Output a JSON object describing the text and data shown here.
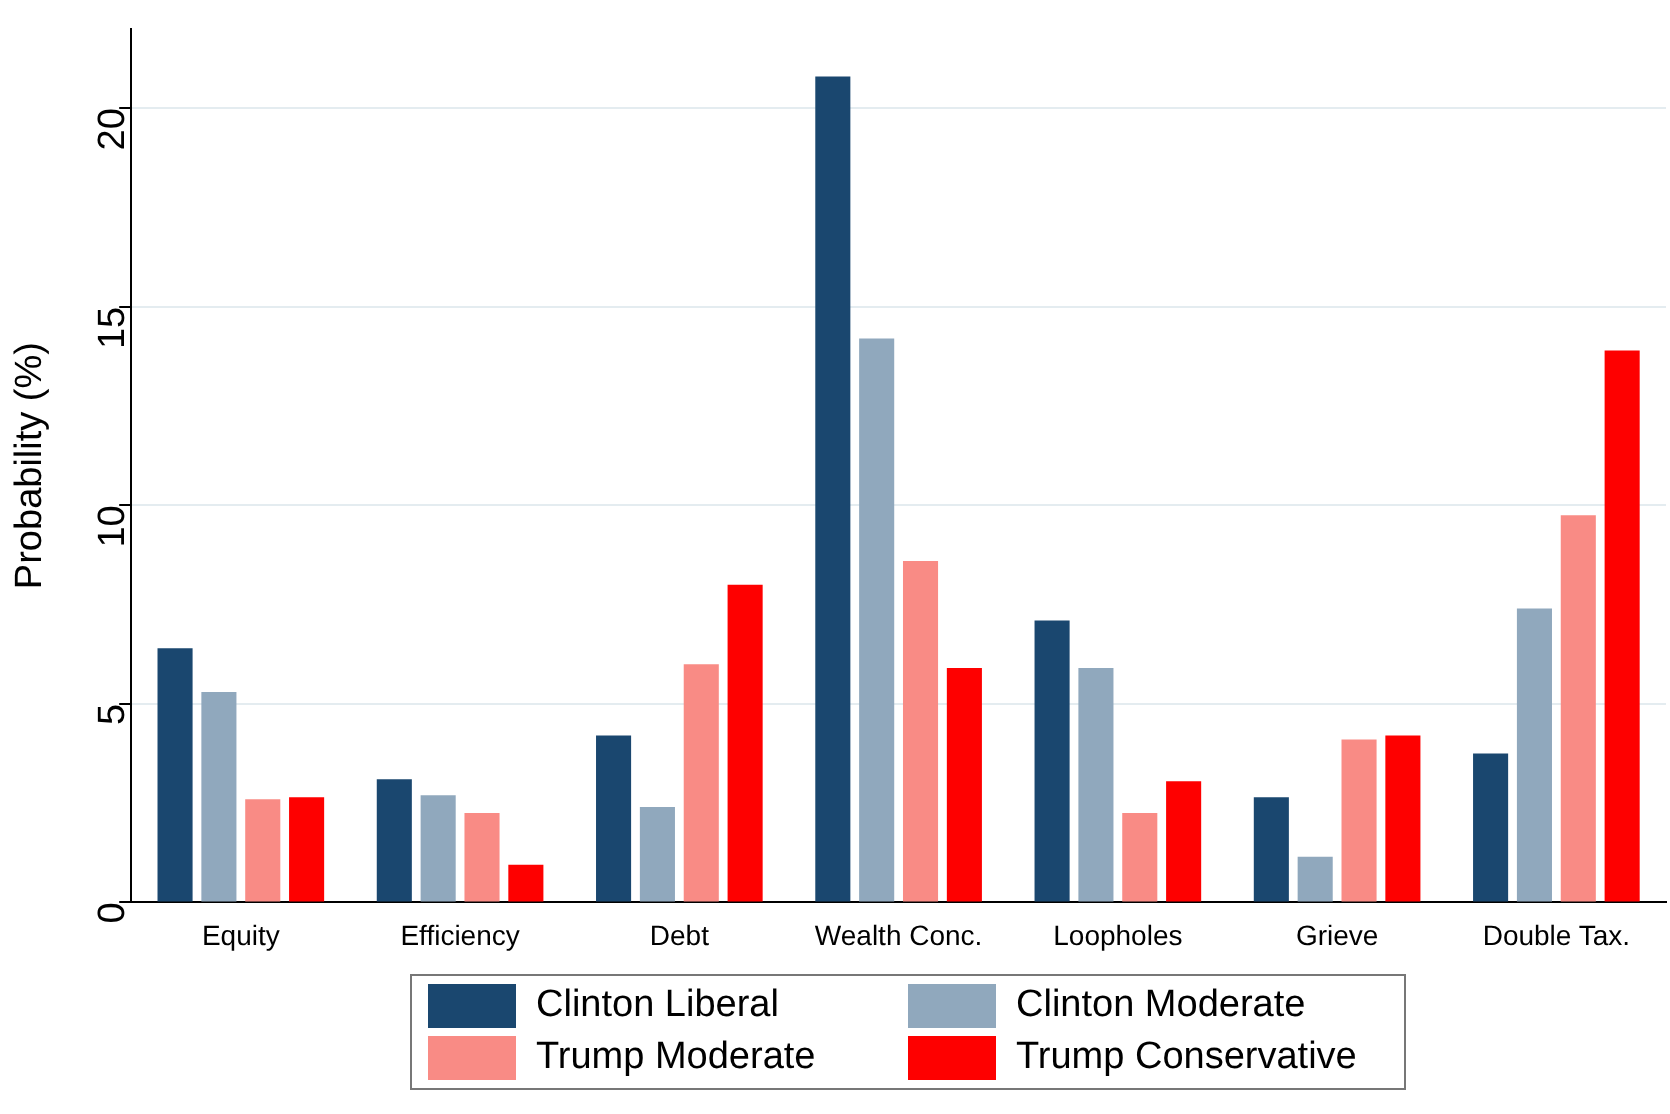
{
  "chart_data": {
    "type": "bar",
    "ylabel": "Probability (%)",
    "categories": [
      "Equity",
      "Efficiency",
      "Debt",
      "Wealth Conc.",
      "Loopholes",
      "Grieve",
      "Double Tax."
    ],
    "series": [
      {
        "name": "Clinton Liberal",
        "color": "#1a476f",
        "values": [
          6.4,
          3.1,
          4.2,
          20.8,
          7.1,
          2.65,
          3.75
        ]
      },
      {
        "name": "Clinton Moderate",
        "color": "#90a8bd",
        "values": [
          5.3,
          2.7,
          2.4,
          14.2,
          5.9,
          1.15,
          7.4
        ]
      },
      {
        "name": "Trump Moderate",
        "color": "#f98b85",
        "values": [
          2.6,
          2.25,
          6.0,
          8.6,
          2.25,
          4.1,
          9.75
        ]
      },
      {
        "name": "Trump Conservative",
        "color": "#fe0000",
        "values": [
          2.65,
          0.95,
          8.0,
          5.9,
          3.05,
          4.2,
          13.9
        ]
      }
    ],
    "ylim": [
      0,
      22
    ],
    "yticks": [
      0,
      5,
      10,
      15,
      20
    ],
    "grid": "y",
    "legend": "bottom"
  }
}
